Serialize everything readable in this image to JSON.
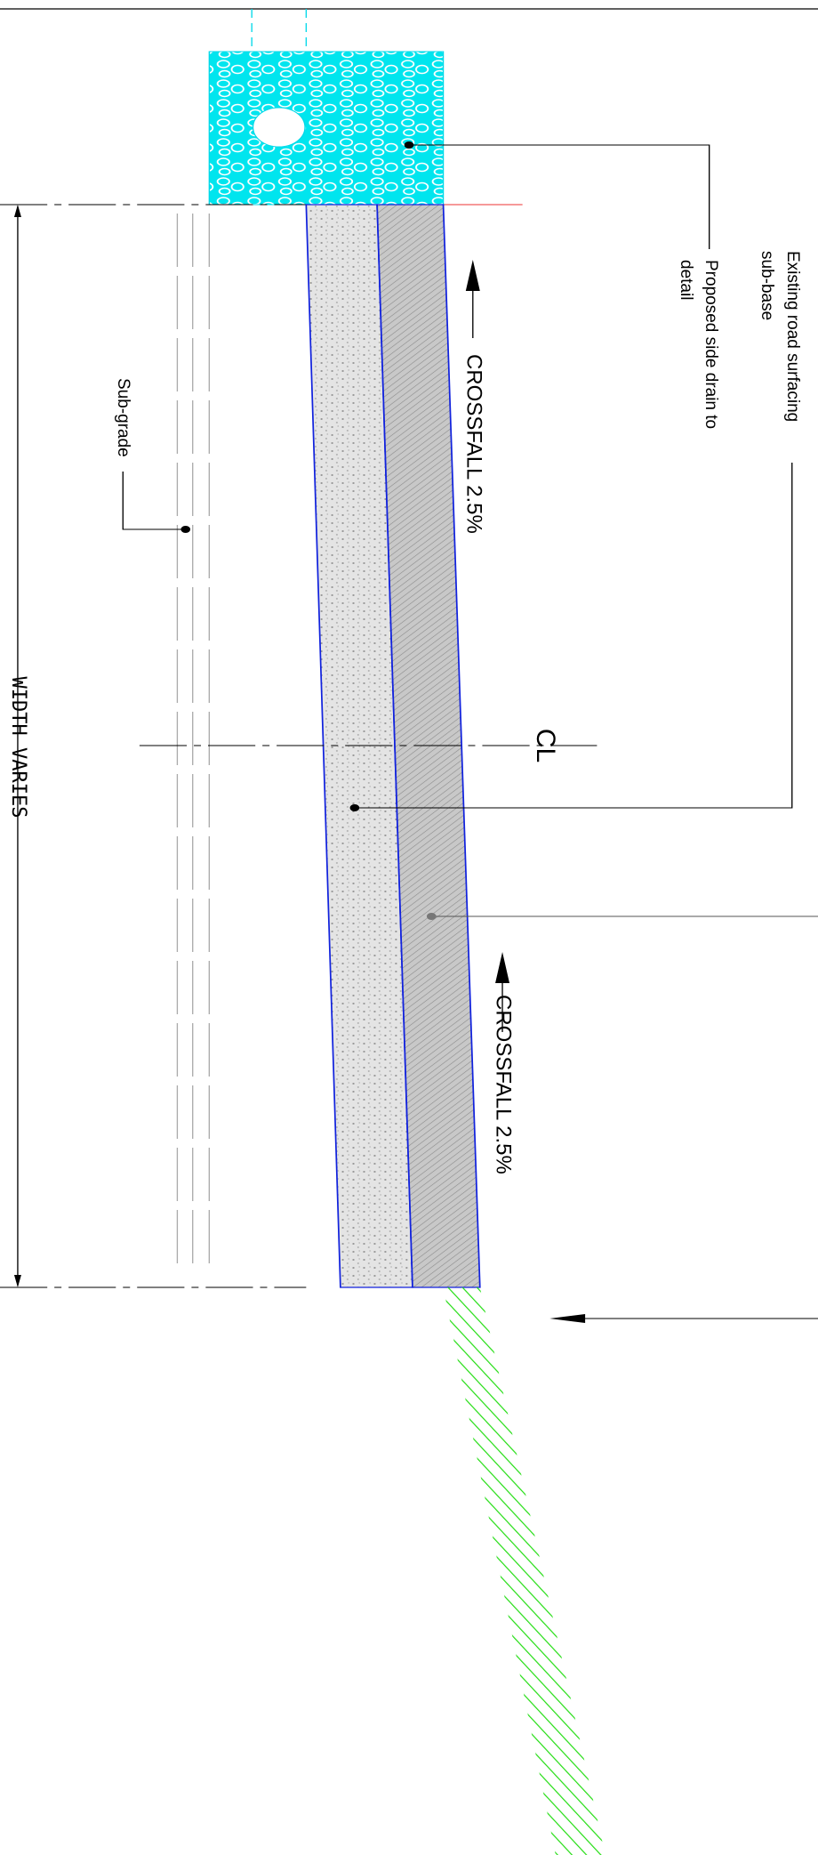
{
  "labels": {
    "existing_surfacing": "Existing road surfacing",
    "sub_base": "sub-base",
    "side_drain": "Proposed side drain to",
    "side_drain_2": "detail",
    "crossfall_top": "CROSSFALL 2.5%",
    "crossfall_bottom": "CROSSFALL 2.5%",
    "sub_grade": "Sub-grade",
    "width": "WIDTH VARIES",
    "centreline": "CL"
  }
}
